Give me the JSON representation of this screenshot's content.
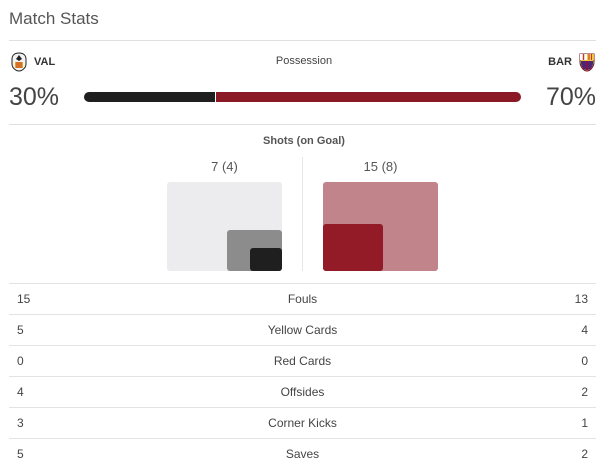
{
  "header": {
    "title": "Match Stats"
  },
  "teams": {
    "home": {
      "abbr": "VAL",
      "crest_icon": "valencia-crest-icon",
      "color": "#1f1f1f"
    },
    "away": {
      "abbr": "BAR",
      "crest_icon": "barcelona-crest-icon",
      "color": "#8c1a26"
    }
  },
  "possession": {
    "label": "Possession",
    "home": "30%",
    "away": "70%",
    "home_value": 30,
    "away_value": 70
  },
  "shots": {
    "label": "Shots (on Goal)",
    "home": {
      "display": "7 (4)",
      "shots": 7,
      "on_goal": 4
    },
    "away": {
      "display": "15 (8)",
      "shots": 15,
      "on_goal": 8
    }
  },
  "stats": [
    {
      "name": "Fouls",
      "home": "15",
      "away": "13"
    },
    {
      "name": "Yellow Cards",
      "home": "5",
      "away": "4"
    },
    {
      "name": "Red Cards",
      "home": "0",
      "away": "0"
    },
    {
      "name": "Offsides",
      "home": "4",
      "away": "2"
    },
    {
      "name": "Corner Kicks",
      "home": "3",
      "away": "1"
    },
    {
      "name": "Saves",
      "home": "5",
      "away": "2"
    }
  ]
}
